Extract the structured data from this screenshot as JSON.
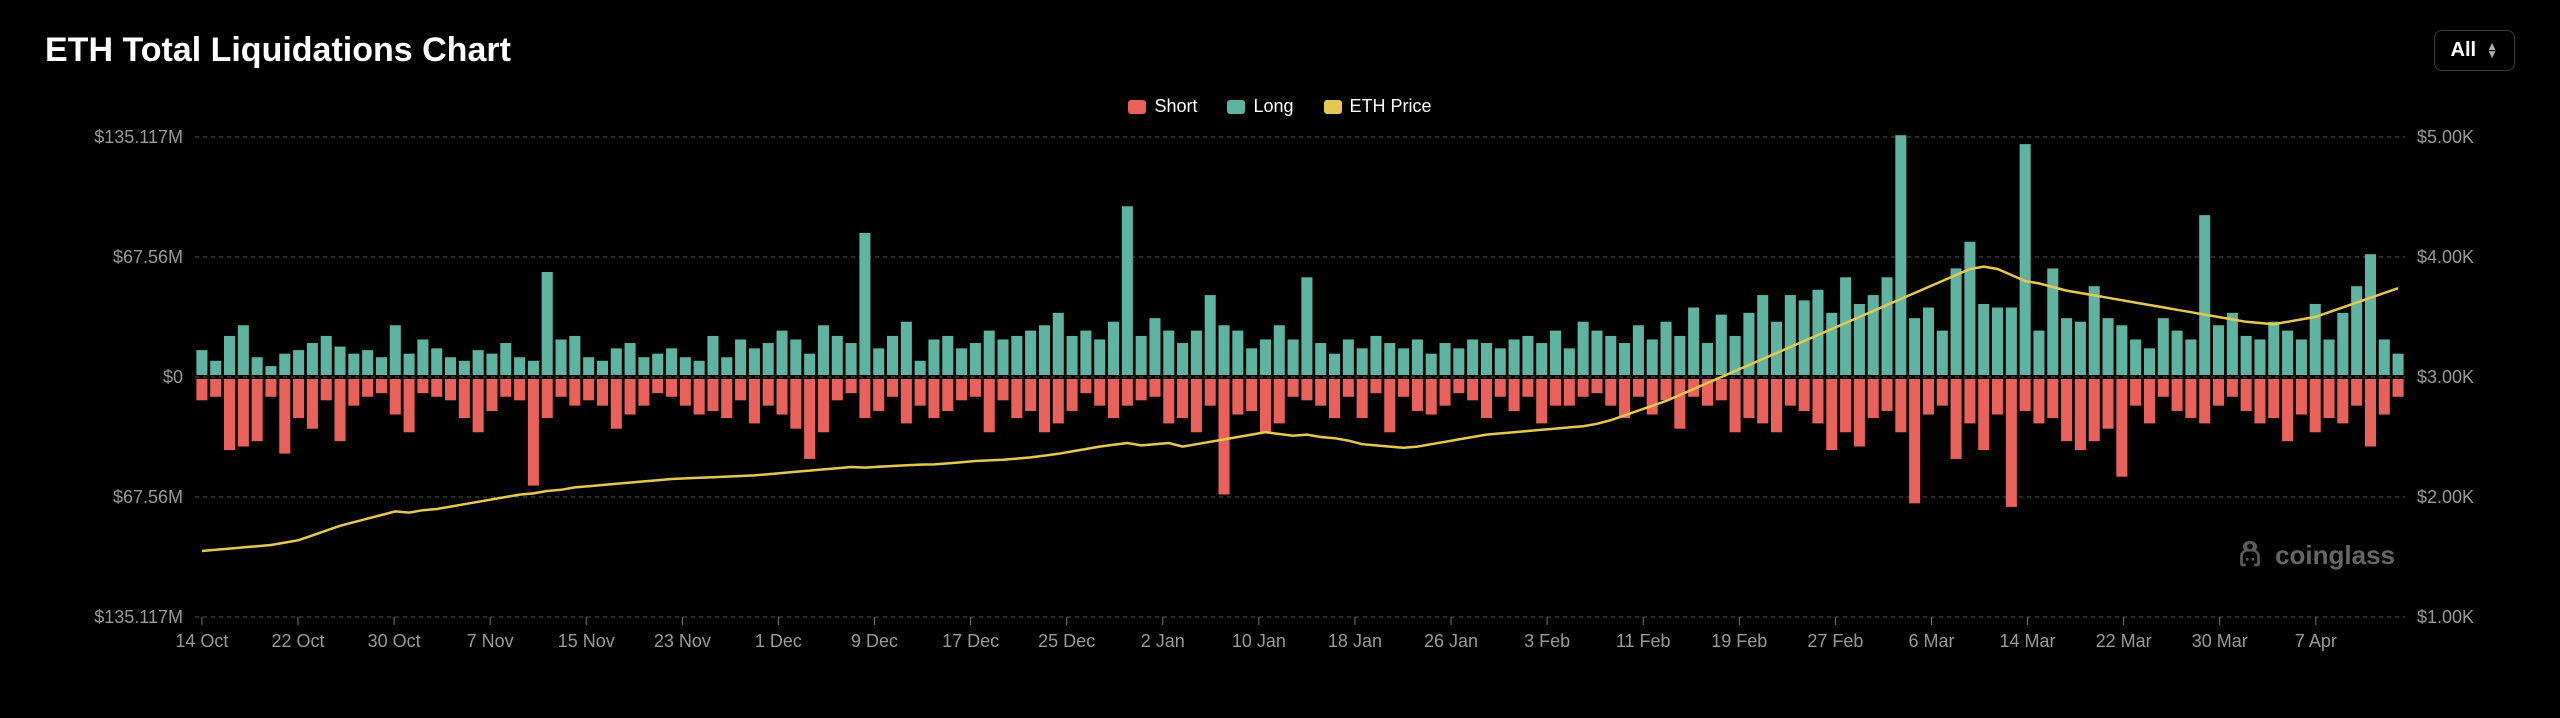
{
  "title": "ETH Total Liquidations Chart",
  "selector": {
    "label": "All"
  },
  "legend": {
    "short": {
      "label": "Short",
      "color": "#e8615a"
    },
    "long": {
      "label": "Long",
      "color": "#5fb3a1"
    },
    "price": {
      "label": "ETH Price",
      "color": "#e6c84e"
    }
  },
  "watermark": "coinglass",
  "chart": {
    "type": "bar+line",
    "background": "#000000",
    "grid_color": "#555555",
    "axis_text_color": "#999999",
    "y_left": {
      "max": 135.117,
      "ticks": [
        {
          "v": 135.117,
          "label": "$135.117M"
        },
        {
          "v": 67.56,
          "label": "$67.56M"
        },
        {
          "v": 0,
          "label": "$0"
        },
        {
          "v": -67.56,
          "label": "$67.56M"
        },
        {
          "v": -135.117,
          "label": "$135.117M"
        }
      ]
    },
    "y_right": {
      "min": 1000,
      "max": 5000,
      "ticks": [
        {
          "v": 5000,
          "label": "$5.00K"
        },
        {
          "v": 4000,
          "label": "$4.00K"
        },
        {
          "v": 3000,
          "label": "$3.00K"
        },
        {
          "v": 2000,
          "label": "$2.00K"
        },
        {
          "v": 1000,
          "label": "$1.00K"
        }
      ]
    },
    "x_labels": [
      "14 Oct",
      "22 Oct",
      "30 Oct",
      "7 Nov",
      "15 Nov",
      "23 Nov",
      "1 Dec",
      "9 Dec",
      "17 Dec",
      "25 Dec",
      "2 Jan",
      "10 Jan",
      "18 Jan",
      "26 Jan",
      "3 Feb",
      "11 Feb",
      "19 Feb",
      "27 Feb",
      "6 Mar",
      "14 Mar",
      "22 Mar",
      "30 Mar",
      "7 Apr"
    ],
    "bars": [
      {
        "l": 14,
        "s": 12,
        "p": 1550
      },
      {
        "l": 8,
        "s": 10,
        "p": 1560
      },
      {
        "l": 22,
        "s": 40,
        "p": 1570
      },
      {
        "l": 28,
        "s": 38,
        "p": 1580
      },
      {
        "l": 10,
        "s": 35,
        "p": 1590
      },
      {
        "l": 5,
        "s": 10,
        "p": 1600
      },
      {
        "l": 12,
        "s": 42,
        "p": 1620
      },
      {
        "l": 14,
        "s": 22,
        "p": 1640
      },
      {
        "l": 18,
        "s": 28,
        "p": 1680
      },
      {
        "l": 22,
        "s": 12,
        "p": 1720
      },
      {
        "l": 16,
        "s": 35,
        "p": 1760
      },
      {
        "l": 12,
        "s": 15,
        "p": 1790
      },
      {
        "l": 14,
        "s": 10,
        "p": 1820
      },
      {
        "l": 10,
        "s": 8,
        "p": 1850
      },
      {
        "l": 28,
        "s": 20,
        "p": 1880
      },
      {
        "l": 12,
        "s": 30,
        "p": 1870
      },
      {
        "l": 20,
        "s": 8,
        "p": 1890
      },
      {
        "l": 15,
        "s": 10,
        "p": 1900
      },
      {
        "l": 10,
        "s": 12,
        "p": 1920
      },
      {
        "l": 8,
        "s": 22,
        "p": 1940
      },
      {
        "l": 14,
        "s": 30,
        "p": 1960
      },
      {
        "l": 12,
        "s": 18,
        "p": 1980
      },
      {
        "l": 18,
        "s": 10,
        "p": 2000
      },
      {
        "l": 10,
        "s": 12,
        "p": 2020
      },
      {
        "l": 8,
        "s": 60,
        "p": 2030
      },
      {
        "l": 58,
        "s": 22,
        "p": 2050
      },
      {
        "l": 20,
        "s": 10,
        "p": 2060
      },
      {
        "l": 22,
        "s": 15,
        "p": 2080
      },
      {
        "l": 10,
        "s": 12,
        "p": 2090
      },
      {
        "l": 8,
        "s": 15,
        "p": 2100
      },
      {
        "l": 15,
        "s": 28,
        "p": 2110
      },
      {
        "l": 18,
        "s": 20,
        "p": 2120
      },
      {
        "l": 10,
        "s": 15,
        "p": 2130
      },
      {
        "l": 12,
        "s": 8,
        "p": 2140
      },
      {
        "l": 15,
        "s": 10,
        "p": 2150
      },
      {
        "l": 10,
        "s": 15,
        "p": 2155
      },
      {
        "l": 8,
        "s": 20,
        "p": 2160
      },
      {
        "l": 22,
        "s": 18,
        "p": 2165
      },
      {
        "l": 10,
        "s": 22,
        "p": 2170
      },
      {
        "l": 20,
        "s": 12,
        "p": 2175
      },
      {
        "l": 15,
        "s": 25,
        "p": 2180
      },
      {
        "l": 18,
        "s": 15,
        "p": 2190
      },
      {
        "l": 25,
        "s": 20,
        "p": 2200
      },
      {
        "l": 20,
        "s": 28,
        "p": 2210
      },
      {
        "l": 12,
        "s": 45,
        "p": 2220
      },
      {
        "l": 28,
        "s": 30,
        "p": 2230
      },
      {
        "l": 22,
        "s": 12,
        "p": 2240
      },
      {
        "l": 18,
        "s": 8,
        "p": 2250
      },
      {
        "l": 80,
        "s": 22,
        "p": 2245
      },
      {
        "l": 15,
        "s": 18,
        "p": 2252
      },
      {
        "l": 22,
        "s": 10,
        "p": 2258
      },
      {
        "l": 30,
        "s": 25,
        "p": 2265
      },
      {
        "l": 8,
        "s": 15,
        "p": 2270
      },
      {
        "l": 20,
        "s": 22,
        "p": 2272
      },
      {
        "l": 22,
        "s": 18,
        "p": 2280
      },
      {
        "l": 15,
        "s": 12,
        "p": 2290
      },
      {
        "l": 18,
        "s": 10,
        "p": 2300
      },
      {
        "l": 25,
        "s": 30,
        "p": 2305
      },
      {
        "l": 20,
        "s": 12,
        "p": 2310
      },
      {
        "l": 22,
        "s": 22,
        "p": 2320
      },
      {
        "l": 25,
        "s": 18,
        "p": 2330
      },
      {
        "l": 28,
        "s": 30,
        "p": 2345
      },
      {
        "l": 35,
        "s": 25,
        "p": 2360
      },
      {
        "l": 22,
        "s": 18,
        "p": 2380
      },
      {
        "l": 25,
        "s": 8,
        "p": 2400
      },
      {
        "l": 20,
        "s": 15,
        "p": 2420
      },
      {
        "l": 30,
        "s": 22,
        "p": 2435
      },
      {
        "l": 95,
        "s": 15,
        "p": 2450
      },
      {
        "l": 22,
        "s": 12,
        "p": 2430
      },
      {
        "l": 32,
        "s": 10,
        "p": 2440
      },
      {
        "l": 25,
        "s": 25,
        "p": 2450
      },
      {
        "l": 18,
        "s": 22,
        "p": 2420
      },
      {
        "l": 25,
        "s": 30,
        "p": 2440
      },
      {
        "l": 45,
        "s": 15,
        "p": 2460
      },
      {
        "l": 28,
        "s": 65,
        "p": 2480
      },
      {
        "l": 25,
        "s": 20,
        "p": 2500
      },
      {
        "l": 15,
        "s": 18,
        "p": 2520
      },
      {
        "l": 20,
        "s": 30,
        "p": 2540
      },
      {
        "l": 28,
        "s": 25,
        "p": 2525
      },
      {
        "l": 20,
        "s": 10,
        "p": 2510
      },
      {
        "l": 55,
        "s": 12,
        "p": 2520
      },
      {
        "l": 18,
        "s": 15,
        "p": 2500
      },
      {
        "l": 12,
        "s": 22,
        "p": 2490
      },
      {
        "l": 20,
        "s": 10,
        "p": 2470
      },
      {
        "l": 15,
        "s": 22,
        "p": 2440
      },
      {
        "l": 22,
        "s": 8,
        "p": 2430
      },
      {
        "l": 18,
        "s": 30,
        "p": 2420
      },
      {
        "l": 15,
        "s": 10,
        "p": 2410
      },
      {
        "l": 20,
        "s": 18,
        "p": 2420
      },
      {
        "l": 12,
        "s": 20,
        "p": 2440
      },
      {
        "l": 18,
        "s": 15,
        "p": 2460
      },
      {
        "l": 15,
        "s": 8,
        "p": 2480
      },
      {
        "l": 20,
        "s": 12,
        "p": 2500
      },
      {
        "l": 18,
        "s": 22,
        "p": 2520
      },
      {
        "l": 15,
        "s": 10,
        "p": 2530
      },
      {
        "l": 20,
        "s": 18,
        "p": 2540
      },
      {
        "l": 22,
        "s": 10,
        "p": 2550
      },
      {
        "l": 18,
        "s": 25,
        "p": 2560
      },
      {
        "l": 25,
        "s": 15,
        "p": 2570
      },
      {
        "l": 15,
        "s": 15,
        "p": 2580
      },
      {
        "l": 30,
        "s": 10,
        "p": 2590
      },
      {
        "l": 25,
        "s": 8,
        "p": 2610
      },
      {
        "l": 22,
        "s": 15,
        "p": 2640
      },
      {
        "l": 18,
        "s": 22,
        "p": 2680
      },
      {
        "l": 28,
        "s": 10,
        "p": 2720
      },
      {
        "l": 20,
        "s": 20,
        "p": 2760
      },
      {
        "l": 30,
        "s": 12,
        "p": 2800
      },
      {
        "l": 22,
        "s": 28,
        "p": 2850
      },
      {
        "l": 38,
        "s": 10,
        "p": 2900
      },
      {
        "l": 18,
        "s": 15,
        "p": 2950
      },
      {
        "l": 34,
        "s": 12,
        "p": 3000
      },
      {
        "l": 22,
        "s": 30,
        "p": 3050
      },
      {
        "l": 35,
        "s": 22,
        "p": 3100
      },
      {
        "l": 45,
        "s": 25,
        "p": 3150
      },
      {
        "l": 30,
        "s": 30,
        "p": 3200
      },
      {
        "l": 45,
        "s": 15,
        "p": 3250
      },
      {
        "l": 42,
        "s": 18,
        "p": 3300
      },
      {
        "l": 48,
        "s": 25,
        "p": 3350
      },
      {
        "l": 35,
        "s": 40,
        "p": 3400
      },
      {
        "l": 55,
        "s": 30,
        "p": 3450
      },
      {
        "l": 40,
        "s": 38,
        "p": 3500
      },
      {
        "l": 45,
        "s": 22,
        "p": 3550
      },
      {
        "l": 55,
        "s": 18,
        "p": 3600
      },
      {
        "l": 135,
        "s": 30,
        "p": 3650
      },
      {
        "l": 32,
        "s": 70,
        "p": 3700
      },
      {
        "l": 38,
        "s": 20,
        "p": 3750
      },
      {
        "l": 25,
        "s": 15,
        "p": 3800
      },
      {
        "l": 60,
        "s": 45,
        "p": 3850
      },
      {
        "l": 75,
        "s": 25,
        "p": 3900
      },
      {
        "l": 40,
        "s": 40,
        "p": 3920
      },
      {
        "l": 38,
        "s": 20,
        "p": 3900
      },
      {
        "l": 38,
        "s": 72,
        "p": 3850
      },
      {
        "l": 130,
        "s": 18,
        "p": 3800
      },
      {
        "l": 25,
        "s": 25,
        "p": 3780
      },
      {
        "l": 60,
        "s": 22,
        "p": 3750
      },
      {
        "l": 32,
        "s": 35,
        "p": 3720
      },
      {
        "l": 30,
        "s": 40,
        "p": 3700
      },
      {
        "l": 50,
        "s": 35,
        "p": 3680
      },
      {
        "l": 32,
        "s": 28,
        "p": 3660
      },
      {
        "l": 28,
        "s": 55,
        "p": 3640
      },
      {
        "l": 20,
        "s": 15,
        "p": 3620
      },
      {
        "l": 15,
        "s": 25,
        "p": 3600
      },
      {
        "l": 32,
        "s": 10,
        "p": 3580
      },
      {
        "l": 25,
        "s": 18,
        "p": 3560
      },
      {
        "l": 20,
        "s": 22,
        "p": 3540
      },
      {
        "l": 90,
        "s": 25,
        "p": 3520
      },
      {
        "l": 28,
        "s": 15,
        "p": 3500
      },
      {
        "l": 35,
        "s": 10,
        "p": 3480
      },
      {
        "l": 22,
        "s": 18,
        "p": 3460
      },
      {
        "l": 20,
        "s": 25,
        "p": 3450
      },
      {
        "l": 30,
        "s": 22,
        "p": 3440
      },
      {
        "l": 25,
        "s": 35,
        "p": 3460
      },
      {
        "l": 20,
        "s": 20,
        "p": 3480
      },
      {
        "l": 40,
        "s": 30,
        "p": 3500
      },
      {
        "l": 20,
        "s": 22,
        "p": 3540
      },
      {
        "l": 35,
        "s": 25,
        "p": 3580
      },
      {
        "l": 50,
        "s": 15,
        "p": 3620
      },
      {
        "l": 68,
        "s": 38,
        "p": 3660
      },
      {
        "l": 20,
        "s": 20,
        "p": 3700
      },
      {
        "l": 12,
        "s": 10,
        "p": 3740
      }
    ]
  }
}
